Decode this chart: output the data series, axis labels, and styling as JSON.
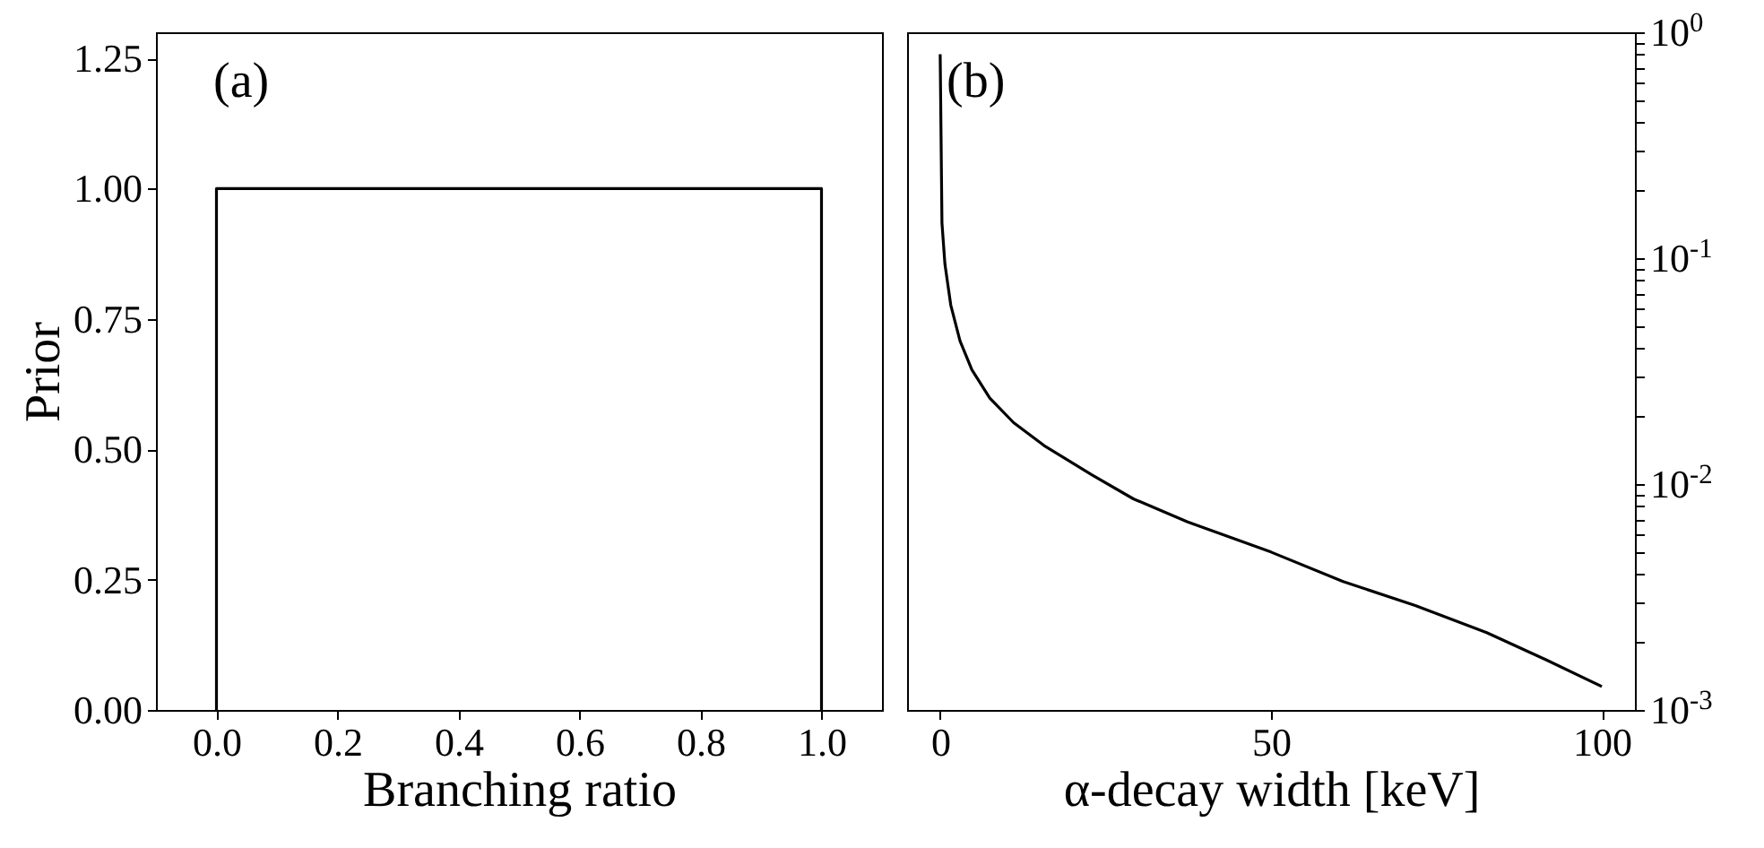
{
  "chart_data": [
    {
      "type": "line",
      "xlabel": "Branching ratio",
      "ylabel": "Prior",
      "annotations": [
        "(a)"
      ],
      "grid": false,
      "xlim": [
        -0.1,
        1.1
      ],
      "ylim": [
        0,
        1.3
      ],
      "xticks": [
        {
          "value": 0,
          "label": "0.0"
        },
        0.2,
        0.4,
        0.6,
        0.8,
        {
          "value": 1,
          "label": "1.0"
        }
      ],
      "yticks": [
        {
          "value": 0,
          "label": "0.00"
        },
        0.25,
        {
          "value": 0.5,
          "label": "0.50"
        },
        0.75,
        {
          "value": 1,
          "label": "1.00"
        },
        1.25
      ],
      "x": [
        0,
        0,
        1,
        1
      ],
      "series": [
        {
          "color": "#000000",
          "values": [
            0,
            1,
            1,
            0
          ]
        }
      ]
    },
    {
      "type": "line",
      "xlabel": "α-decay width [keV]",
      "annotations": [
        "(b)"
      ],
      "grid": false,
      "log": "y",
      "xlim": [
        -5,
        105
      ],
      "ylim": [
        0.001,
        1
      ],
      "xticks": [
        0,
        50,
        100
      ],
      "yticks": [
        {
          "value": 0.001,
          "label": "10$^{-3}$"
        },
        {
          "value": 0.002,
          "label": null
        },
        {
          "value": 0.003,
          "label": null
        },
        {
          "value": 0.004,
          "label": null
        },
        {
          "value": 0.005,
          "label": null
        },
        {
          "value": 0.006,
          "label": null
        },
        {
          "value": 0.007,
          "label": null
        },
        {
          "value": 0.008,
          "label": null
        },
        {
          "value": 0.009,
          "label": null
        },
        {
          "value": 0.01,
          "label": "10$^{-2}$"
        },
        {
          "value": 0.02,
          "label": null
        },
        {
          "value": 0.03,
          "label": null
        },
        {
          "value": 0.04,
          "label": null
        },
        {
          "value": 0.05,
          "label": null
        },
        {
          "value": 0.06,
          "label": null
        },
        {
          "value": 0.07,
          "label": null
        },
        {
          "value": 0.08,
          "label": null
        },
        {
          "value": 0.09,
          "label": null
        },
        {
          "value": 0.1,
          "label": "10$^{-1}$"
        },
        {
          "value": 0.2,
          "label": null
        },
        {
          "value": 0.3,
          "label": null
        },
        {
          "value": 0.4,
          "label": null
        },
        {
          "value": 0.5,
          "label": null
        },
        {
          "value": 0.6,
          "label": null
        },
        {
          "value": 0.7,
          "label": null
        },
        {
          "value": 0.8,
          "label": null
        },
        {
          "value": 0.9,
          "label": null
        },
        {
          "value": 1,
          "label": "10$^{0}$"
        }
      ],
      "x": [
        0,
        0.27,
        0.72,
        1.6,
        3.0,
        4.8,
        7.5,
        11.1,
        15.7,
        22.9,
        29.2,
        37.4,
        50,
        60.9,
        71.8,
        82.6,
        91.7,
        100
      ],
      "series": [
        {
          "color": "#000000",
          "values": [
            0.8,
            0.143,
            0.094,
            0.062,
            0.043,
            0.032,
            0.024,
            0.0187,
            0.0148,
            0.011,
            0.0086,
            0.0068,
            0.005,
            0.0037,
            0.0029,
            0.0022,
            0.00166,
            0.00127
          ]
        }
      ]
    }
  ]
}
